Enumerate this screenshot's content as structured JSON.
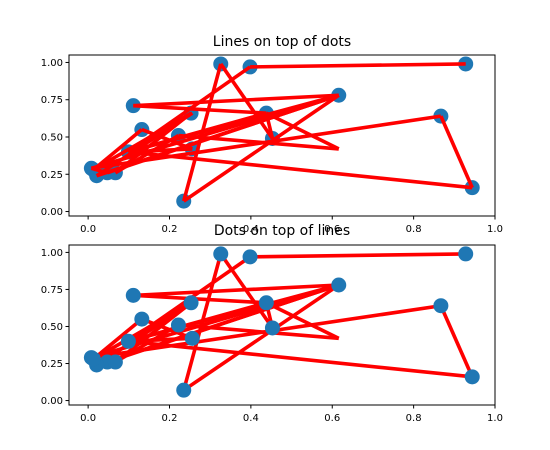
{
  "chart_data": [
    {
      "type": "line",
      "title": "Lines on top of dots",
      "draw_order": "lines-over-dots",
      "xlim": [
        -0.047,
        1.0
      ],
      "ylim": [
        -0.03,
        1.05
      ],
      "xticks": [
        "0.0",
        "0.2",
        "0.4",
        "0.6",
        "0.8",
        "1.0"
      ],
      "yticks": [
        "0.00",
        "0.25",
        "0.50",
        "0.75",
        "1.00"
      ],
      "line_color": "#ff0000",
      "marker_color": "#1f77b4",
      "points": {
        "x": [
          0.008,
          0.047,
          0.616,
          0.326,
          0.453,
          0.021,
          0.099,
          0.111,
          0.438,
          0.867,
          0.944,
          0.235,
          0.398,
          0.928,
          0.067,
          0.253,
          0.013,
          0.132,
          0.222,
          0.256
        ],
        "y": [
          0.29,
          0.26,
          0.78,
          0.99,
          0.49,
          0.24,
          0.4,
          0.71,
          0.66,
          0.64,
          0.16,
          0.07,
          0.97,
          0.99,
          0.26,
          0.66,
          0.28,
          0.55,
          0.51,
          0.42
        ]
      },
      "line_path": [
        [
          0.008,
          0.29
        ],
        [
          0.047,
          0.26
        ],
        [
          0.616,
          0.78
        ],
        [
          0.021,
          0.24
        ],
        [
          0.256,
          0.66
        ],
        [
          0.099,
          0.4
        ],
        [
          0.616,
          0.78
        ],
        [
          0.111,
          0.71
        ],
        [
          0.438,
          0.66
        ],
        [
          0.453,
          0.49
        ],
        [
          0.326,
          0.99
        ],
        [
          0.235,
          0.07
        ],
        [
          0.616,
          0.78
        ],
        [
          0.008,
          0.29
        ],
        [
          0.867,
          0.64
        ],
        [
          0.944,
          0.16
        ],
        [
          0.099,
          0.4
        ],
        [
          0.438,
          0.66
        ],
        [
          0.616,
          0.42
        ],
        [
          0.222,
          0.51
        ],
        [
          0.067,
          0.26
        ],
        [
          0.253,
          0.66
        ],
        [
          0.013,
          0.28
        ],
        [
          0.132,
          0.55
        ],
        [
          0.256,
          0.42
        ],
        [
          0.099,
          0.4
        ],
        [
          0.398,
          0.97
        ],
        [
          0.928,
          0.99
        ]
      ]
    },
    {
      "type": "line",
      "title": "Dots on top of lines",
      "draw_order": "dots-over-lines",
      "xlim": [
        -0.047,
        1.0
      ],
      "ylim": [
        -0.03,
        1.05
      ],
      "xticks": [
        "0.0",
        "0.2",
        "0.4",
        "0.6",
        "0.8",
        "1.0"
      ],
      "yticks": [
        "0.00",
        "0.25",
        "0.50",
        "0.75",
        "1.00"
      ],
      "line_color": "#ff0000",
      "marker_color": "#1f77b4",
      "points": {
        "x": [
          0.008,
          0.047,
          0.616,
          0.326,
          0.453,
          0.021,
          0.099,
          0.111,
          0.438,
          0.867,
          0.944,
          0.235,
          0.398,
          0.928,
          0.067,
          0.253,
          0.013,
          0.132,
          0.222,
          0.256
        ],
        "y": [
          0.29,
          0.26,
          0.78,
          0.99,
          0.49,
          0.24,
          0.4,
          0.71,
          0.66,
          0.64,
          0.16,
          0.07,
          0.97,
          0.99,
          0.26,
          0.66,
          0.28,
          0.55,
          0.51,
          0.42
        ]
      },
      "line_path": [
        [
          0.008,
          0.29
        ],
        [
          0.047,
          0.26
        ],
        [
          0.616,
          0.78
        ],
        [
          0.021,
          0.24
        ],
        [
          0.256,
          0.66
        ],
        [
          0.099,
          0.4
        ],
        [
          0.616,
          0.78
        ],
        [
          0.111,
          0.71
        ],
        [
          0.438,
          0.66
        ],
        [
          0.453,
          0.49
        ],
        [
          0.326,
          0.99
        ],
        [
          0.235,
          0.07
        ],
        [
          0.616,
          0.78
        ],
        [
          0.008,
          0.29
        ],
        [
          0.867,
          0.64
        ],
        [
          0.944,
          0.16
        ],
        [
          0.099,
          0.4
        ],
        [
          0.438,
          0.66
        ],
        [
          0.616,
          0.42
        ],
        [
          0.222,
          0.51
        ],
        [
          0.067,
          0.26
        ],
        [
          0.253,
          0.66
        ],
        [
          0.013,
          0.28
        ],
        [
          0.132,
          0.55
        ],
        [
          0.256,
          0.42
        ],
        [
          0.099,
          0.4
        ],
        [
          0.398,
          0.97
        ],
        [
          0.928,
          0.99
        ]
      ]
    }
  ]
}
